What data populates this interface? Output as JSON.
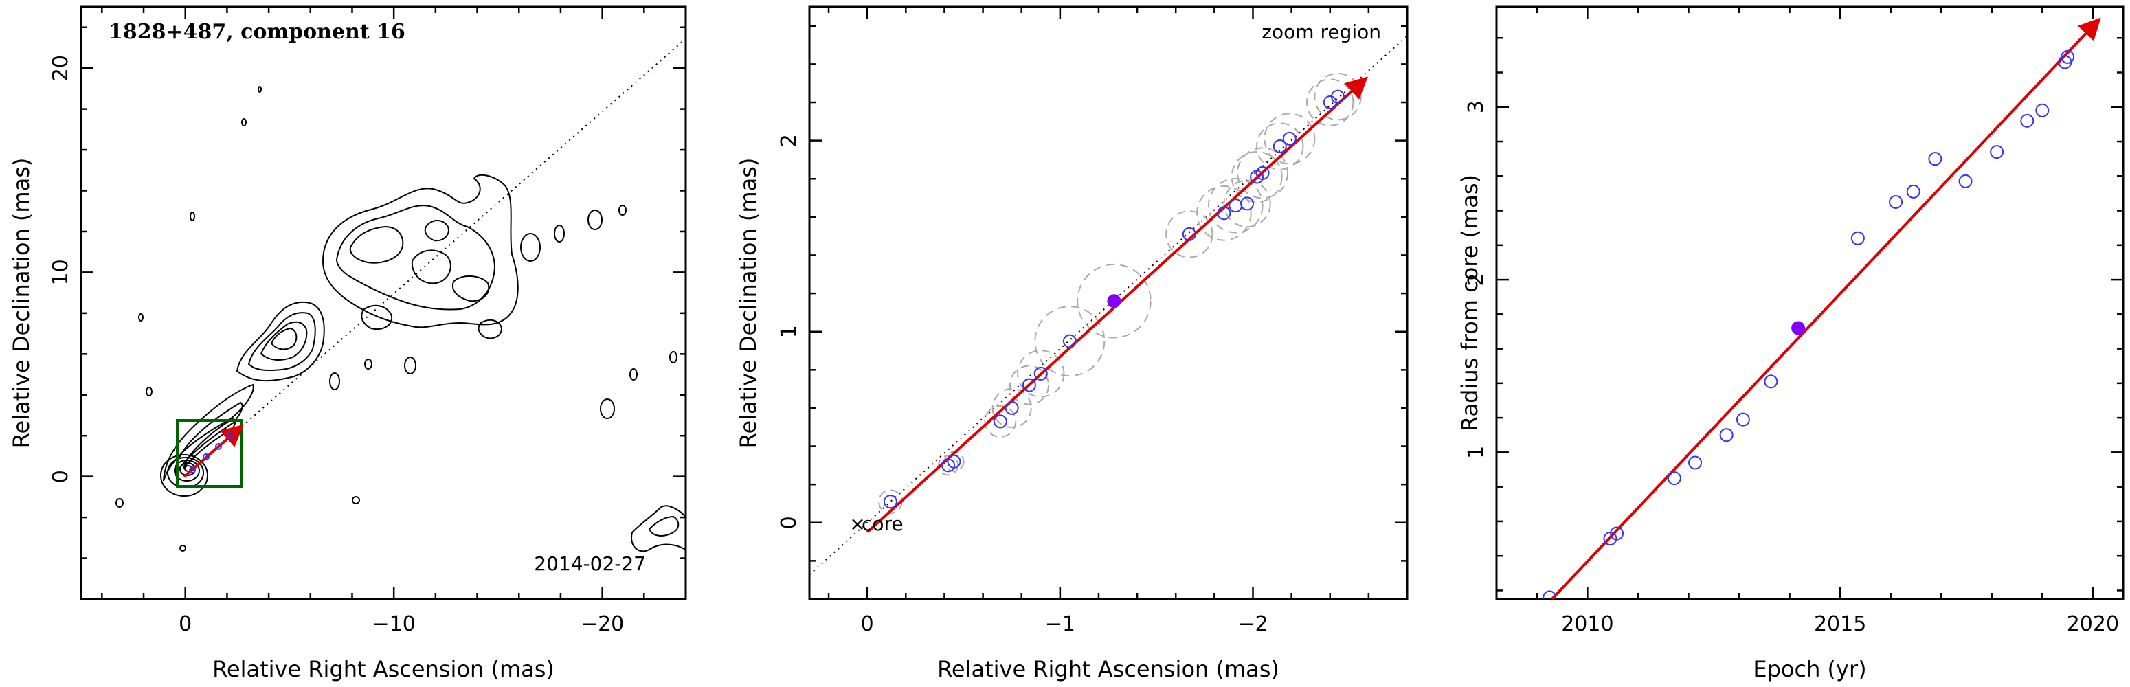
{
  "chart_data": [
    {
      "type": "contour",
      "title": "1828+487, component 16",
      "xlabel": "Relative Right Ascension (mas)",
      "ylabel": "Relative Declination (mas)",
      "xlim": [
        5,
        -24
      ],
      "ylim": [
        -6,
        23
      ],
      "xticks": [
        0,
        -10,
        -20
      ],
      "yticks": [
        0,
        10,
        20
      ],
      "annotation": "2014-02-27",
      "zoom_box": {
        "x0": 0.3,
        "x1": -3.0,
        "y0": -0.5,
        "y1": 2.7
      },
      "jet_axis_slope": -0.91,
      "component_path": [
        [
          0,
          0
        ],
        [
          -2.4,
          2.2
        ]
      ],
      "colors": {
        "zoom_box": "#006400",
        "component": "#e00000"
      }
    },
    {
      "type": "scatter",
      "xlabel": "Relative Right Ascension (mas)",
      "ylabel": "Relative Declination (mas)",
      "xlim": [
        0.3,
        -2.8
      ],
      "ylim": [
        -0.4,
        2.7
      ],
      "xticks": [
        0,
        -1,
        -2
      ],
      "yticks": [
        0,
        1,
        2
      ],
      "region_label": "zoom region",
      "core_label": "core",
      "core_marker": "×",
      "points": [
        {
          "x": -0.12,
          "y": 0.11,
          "r": 0.06
        },
        {
          "x": -0.42,
          "y": 0.3,
          "r": 0.05
        },
        {
          "x": -0.45,
          "y": 0.32,
          "r": 0.05
        },
        {
          "x": -0.69,
          "y": 0.53,
          "r": 0.08
        },
        {
          "x": -0.75,
          "y": 0.6,
          "r": 0.1
        },
        {
          "x": -0.84,
          "y": 0.72,
          "r": 0.1
        },
        {
          "x": -0.9,
          "y": 0.78,
          "r": 0.12
        },
        {
          "x": -1.05,
          "y": 0.95,
          "r": 0.18
        },
        {
          "x": -1.67,
          "y": 1.51,
          "r": 0.12
        },
        {
          "x": -1.85,
          "y": 1.62,
          "r": 0.14
        },
        {
          "x": -1.91,
          "y": 1.66,
          "r": 0.14
        },
        {
          "x": -1.97,
          "y": 1.67,
          "r": 0.12
        },
        {
          "x": -2.02,
          "y": 1.81,
          "r": 0.13
        },
        {
          "x": -2.05,
          "y": 1.83,
          "r": 0.13
        },
        {
          "x": -2.14,
          "y": 1.97,
          "r": 0.12
        },
        {
          "x": -2.19,
          "y": 2.01,
          "r": 0.13
        },
        {
          "x": -2.4,
          "y": 2.2,
          "r": 0.12
        },
        {
          "x": -2.44,
          "y": 2.23,
          "r": 0.12
        }
      ],
      "highlight": {
        "x": -1.28,
        "y": 1.16,
        "r": 0.19
      },
      "fit_line": {
        "x0": 0.0,
        "y0": -0.05,
        "x1": -2.58,
        "y1": 2.32
      },
      "axis_line_slope": -0.91,
      "colors": {
        "points": "#3333ff",
        "highlight": "#7f00ff",
        "fit": "#e00000",
        "circles": "#aaaaaa"
      }
    },
    {
      "type": "scatter",
      "xlabel": "Epoch (yr)",
      "ylabel": "Radius from core (mas)",
      "xlim": [
        2008.2,
        2020.6
      ],
      "ylim": [
        0.15,
        3.58
      ],
      "xticks": [
        2010,
        2015,
        2020
      ],
      "yticks": [
        1,
        2,
        3
      ],
      "points": [
        {
          "x": 2009.25,
          "y": 0.16
        },
        {
          "x": 2010.45,
          "y": 0.5
        },
        {
          "x": 2010.58,
          "y": 0.53
        },
        {
          "x": 2011.72,
          "y": 0.85
        },
        {
          "x": 2012.13,
          "y": 0.94
        },
        {
          "x": 2012.75,
          "y": 1.1
        },
        {
          "x": 2013.08,
          "y": 1.19
        },
        {
          "x": 2013.63,
          "y": 1.41
        },
        {
          "x": 2015.35,
          "y": 2.24
        },
        {
          "x": 2016.1,
          "y": 2.45
        },
        {
          "x": 2016.45,
          "y": 2.51
        },
        {
          "x": 2016.88,
          "y": 2.7
        },
        {
          "x": 2017.48,
          "y": 2.57
        },
        {
          "x": 2018.1,
          "y": 2.74
        },
        {
          "x": 2018.7,
          "y": 2.92
        },
        {
          "x": 2019.0,
          "y": 2.98
        },
        {
          "x": 2019.45,
          "y": 3.26
        },
        {
          "x": 2019.5,
          "y": 3.29
        }
      ],
      "highlight": {
        "x": 2014.17,
        "y": 1.72
      },
      "fit_line": {
        "x0": 2009.2,
        "y0": 0.12,
        "x1": 2020.1,
        "y1": 3.5
      },
      "colors": {
        "points": "#3333ff",
        "highlight": "#7f00ff",
        "fit": "#e00000"
      }
    }
  ]
}
